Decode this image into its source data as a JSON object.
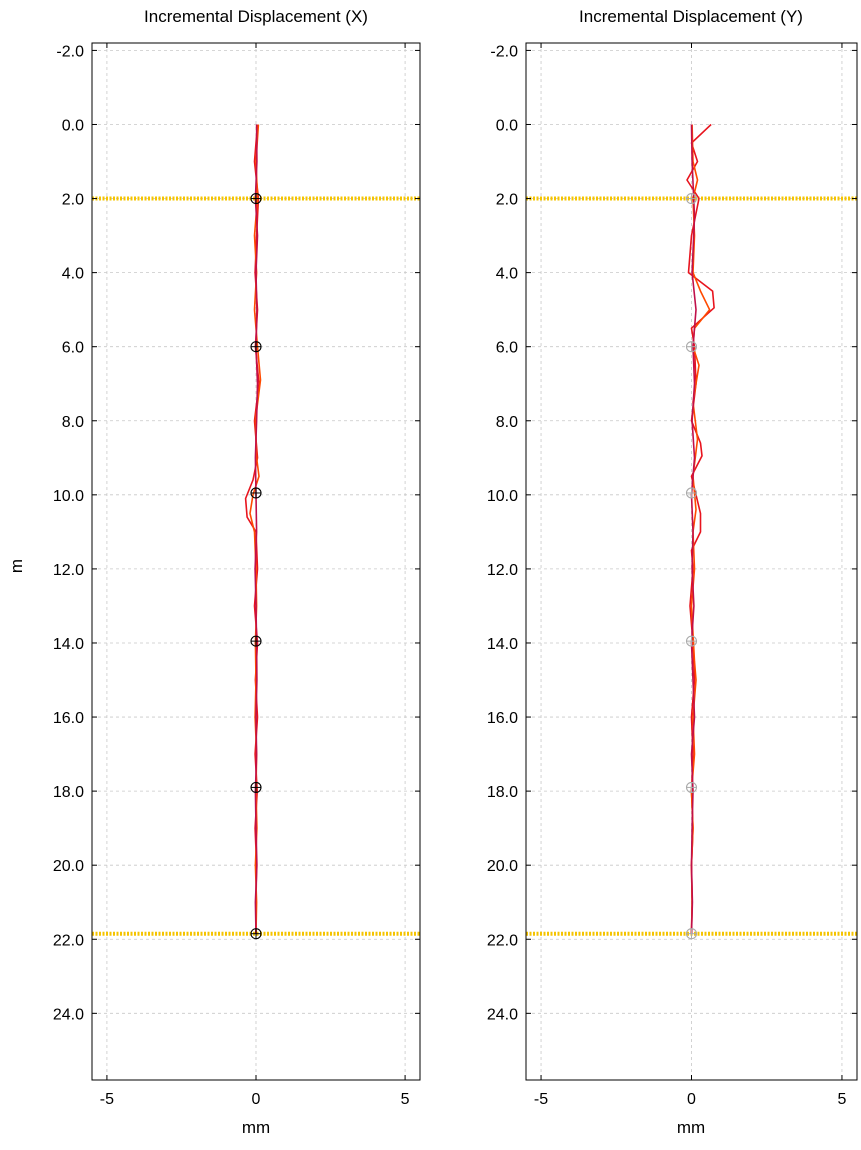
{
  "chart_data": [
    {
      "type": "line",
      "title": "Incremental Displacement (X)",
      "xlabel": "mm",
      "ylabel": "m",
      "xlim": [
        -5.5,
        5.5
      ],
      "ylim": [
        -2.2,
        25.8
      ],
      "y_inverted": true,
      "grid": true,
      "x_ticks": [
        "-5",
        "0",
        "5"
      ],
      "y_ticks": [
        "-2.0",
        "0.0",
        "2.0",
        "4.0",
        "6.0",
        "8.0",
        "10.0",
        "12.0",
        "14.0",
        "16.0",
        "18.0",
        "20.0",
        "22.0",
        "24.0"
      ],
      "reference_lines": [
        2.0,
        21.85
      ],
      "reference_color": "#f5c400",
      "line_colors": [
        "#e8141e",
        "#ff4a00",
        "#c0104a"
      ],
      "marker_color": "#000000",
      "markers": [
        {
          "x": 0.0,
          "y": 2.0
        },
        {
          "x": 0.0,
          "y": 6.0
        },
        {
          "x": 0.0,
          "y": 9.95
        },
        {
          "x": 0.0,
          "y": 13.95
        },
        {
          "x": 0.0,
          "y": 17.9
        },
        {
          "x": 0.0,
          "y": 21.85
        }
      ],
      "series": [
        {
          "values": [
            [
              0.05,
              0
            ],
            [
              -0.05,
              1
            ],
            [
              0.08,
              2
            ],
            [
              0.02,
              3
            ],
            [
              -0.03,
              4
            ],
            [
              0.05,
              5
            ],
            [
              -0.02,
              6
            ],
            [
              0.1,
              7
            ],
            [
              -0.05,
              8
            ],
            [
              0.05,
              9
            ],
            [
              -0.1,
              9.6
            ],
            [
              -0.35,
              10.1
            ],
            [
              -0.3,
              10.6
            ],
            [
              0.0,
              11
            ],
            [
              0.05,
              12
            ],
            [
              -0.05,
              13
            ],
            [
              0.05,
              14
            ],
            [
              -0.02,
              15
            ],
            [
              0.05,
              16
            ],
            [
              -0.03,
              17
            ],
            [
              0.04,
              18
            ],
            [
              -0.03,
              19
            ],
            [
              0.02,
              20
            ],
            [
              0.0,
              21
            ],
            [
              0.0,
              21.85
            ]
          ]
        },
        {
          "values": [
            [
              0.08,
              0
            ],
            [
              0.0,
              1
            ],
            [
              0.05,
              2
            ],
            [
              -0.05,
              3
            ],
            [
              0.02,
              4
            ],
            [
              -0.05,
              5
            ],
            [
              0.05,
              6
            ],
            [
              0.15,
              6.9
            ],
            [
              -0.02,
              8
            ],
            [
              0.02,
              9
            ],
            [
              0.1,
              9.5
            ],
            [
              -0.1,
              10
            ],
            [
              -0.2,
              10.5
            ],
            [
              -0.05,
              11
            ],
            [
              0.0,
              12
            ],
            [
              0.02,
              13
            ],
            [
              -0.02,
              14
            ],
            [
              0.0,
              15
            ],
            [
              -0.03,
              16
            ],
            [
              0.02,
              17
            ],
            [
              0.0,
              18
            ],
            [
              0.03,
              19
            ],
            [
              -0.02,
              20
            ],
            [
              0.02,
              21
            ],
            [
              0.0,
              21.85
            ]
          ]
        },
        {
          "values": [
            [
              0.02,
              0
            ],
            [
              0.03,
              1
            ],
            [
              -0.02,
              2
            ],
            [
              0.05,
              3
            ],
            [
              0.0,
              4
            ],
            [
              0.03,
              5
            ],
            [
              0.0,
              6
            ],
            [
              0.05,
              7
            ],
            [
              0.02,
              8
            ],
            [
              -0.02,
              9
            ],
            [
              0.0,
              10
            ],
            [
              0.02,
              11
            ],
            [
              -0.03,
              12
            ],
            [
              0.0,
              13
            ],
            [
              0.02,
              14
            ],
            [
              0.03,
              15
            ],
            [
              0.0,
              16
            ],
            [
              0.02,
              17
            ],
            [
              -0.02,
              18
            ],
            [
              0.0,
              19
            ],
            [
              0.03,
              20
            ],
            [
              -0.02,
              21
            ],
            [
              0.0,
              21.85
            ]
          ]
        }
      ]
    },
    {
      "type": "line",
      "title": "Incremental Displacement (Y)",
      "xlabel": "mm",
      "ylabel": "",
      "xlim": [
        -5.5,
        5.5
      ],
      "ylim": [
        -2.2,
        25.8
      ],
      "y_inverted": true,
      "grid": true,
      "x_ticks": [
        "-5",
        "0",
        "5"
      ],
      "y_ticks": [
        "-2.0",
        "0.0",
        "2.0",
        "4.0",
        "6.0",
        "8.0",
        "10.0",
        "12.0",
        "14.0",
        "16.0",
        "18.0",
        "20.0",
        "22.0",
        "24.0"
      ],
      "reference_lines": [
        2.0,
        21.85
      ],
      "reference_color": "#f5c400",
      "line_colors": [
        "#e8141e",
        "#ff4a00",
        "#c0104a"
      ],
      "marker_color": "#aaaaaa",
      "markers": [
        {
          "x": 0.0,
          "y": 2.0
        },
        {
          "x": 0.0,
          "y": 6.0
        },
        {
          "x": 0.0,
          "y": 9.95
        },
        {
          "x": 0.0,
          "y": 13.95
        },
        {
          "x": 0.0,
          "y": 17.9
        },
        {
          "x": 0.0,
          "y": 21.85
        }
      ],
      "series": [
        {
          "values": [
            [
              0.65,
              0
            ],
            [
              0.0,
              0.5
            ],
            [
              0.2,
              1
            ],
            [
              -0.15,
              1.5
            ],
            [
              0.25,
              2
            ],
            [
              0.0,
              3
            ],
            [
              -0.1,
              4
            ],
            [
              0.7,
              4.5
            ],
            [
              0.75,
              4.95
            ],
            [
              0.0,
              5.5
            ],
            [
              0.1,
              6
            ],
            [
              0.15,
              7
            ],
            [
              0.0,
              8
            ],
            [
              0.3,
              8.6
            ],
            [
              0.35,
              8.95
            ],
            [
              0.0,
              9.5
            ],
            [
              0.3,
              10.5
            ],
            [
              0.3,
              11
            ],
            [
              0.0,
              11.5
            ],
            [
              0.05,
              12
            ],
            [
              -0.05,
              13
            ],
            [
              0.05,
              14
            ],
            [
              0.1,
              15
            ],
            [
              0.0,
              16
            ],
            [
              0.05,
              17
            ],
            [
              0.0,
              18
            ],
            [
              0.05,
              19
            ],
            [
              0.0,
              20
            ],
            [
              0.02,
              21
            ],
            [
              0.0,
              21.85
            ]
          ]
        },
        {
          "values": [
            [
              0.02,
              0
            ],
            [
              0.05,
              1
            ],
            [
              0.2,
              1.5
            ],
            [
              0.05,
              2
            ],
            [
              0.1,
              3
            ],
            [
              0.05,
              4
            ],
            [
              0.3,
              4.5
            ],
            [
              0.6,
              5
            ],
            [
              0.1,
              5.5
            ],
            [
              0.05,
              6
            ],
            [
              0.25,
              6.5
            ],
            [
              0.05,
              7.5
            ],
            [
              0.2,
              8.5
            ],
            [
              0.05,
              9.5
            ],
            [
              0.15,
              10.4
            ],
            [
              0.05,
              11
            ],
            [
              0.1,
              12
            ],
            [
              0.0,
              13
            ],
            [
              0.1,
              14.5
            ],
            [
              0.15,
              15
            ],
            [
              0.05,
              16
            ],
            [
              0.1,
              17
            ],
            [
              0.0,
              18
            ],
            [
              0.05,
              19
            ],
            [
              0.0,
              20
            ],
            [
              0.02,
              21
            ],
            [
              0.0,
              21.85
            ]
          ]
        },
        {
          "values": [
            [
              0.0,
              0
            ],
            [
              0.02,
              1
            ],
            [
              0.1,
              2.5
            ],
            [
              0.02,
              4
            ],
            [
              0.15,
              5
            ],
            [
              0.05,
              6
            ],
            [
              0.1,
              7
            ],
            [
              0.02,
              8
            ],
            [
              0.1,
              9
            ],
            [
              0.0,
              10
            ],
            [
              0.05,
              11
            ],
            [
              0.02,
              12
            ],
            [
              0.08,
              13
            ],
            [
              0.0,
              14
            ],
            [
              0.05,
              15
            ],
            [
              0.1,
              16
            ],
            [
              0.0,
              17
            ],
            [
              0.05,
              18
            ],
            [
              0.02,
              19
            ],
            [
              0.0,
              20
            ],
            [
              0.03,
              21
            ],
            [
              0.0,
              21.85
            ]
          ]
        }
      ]
    }
  ]
}
